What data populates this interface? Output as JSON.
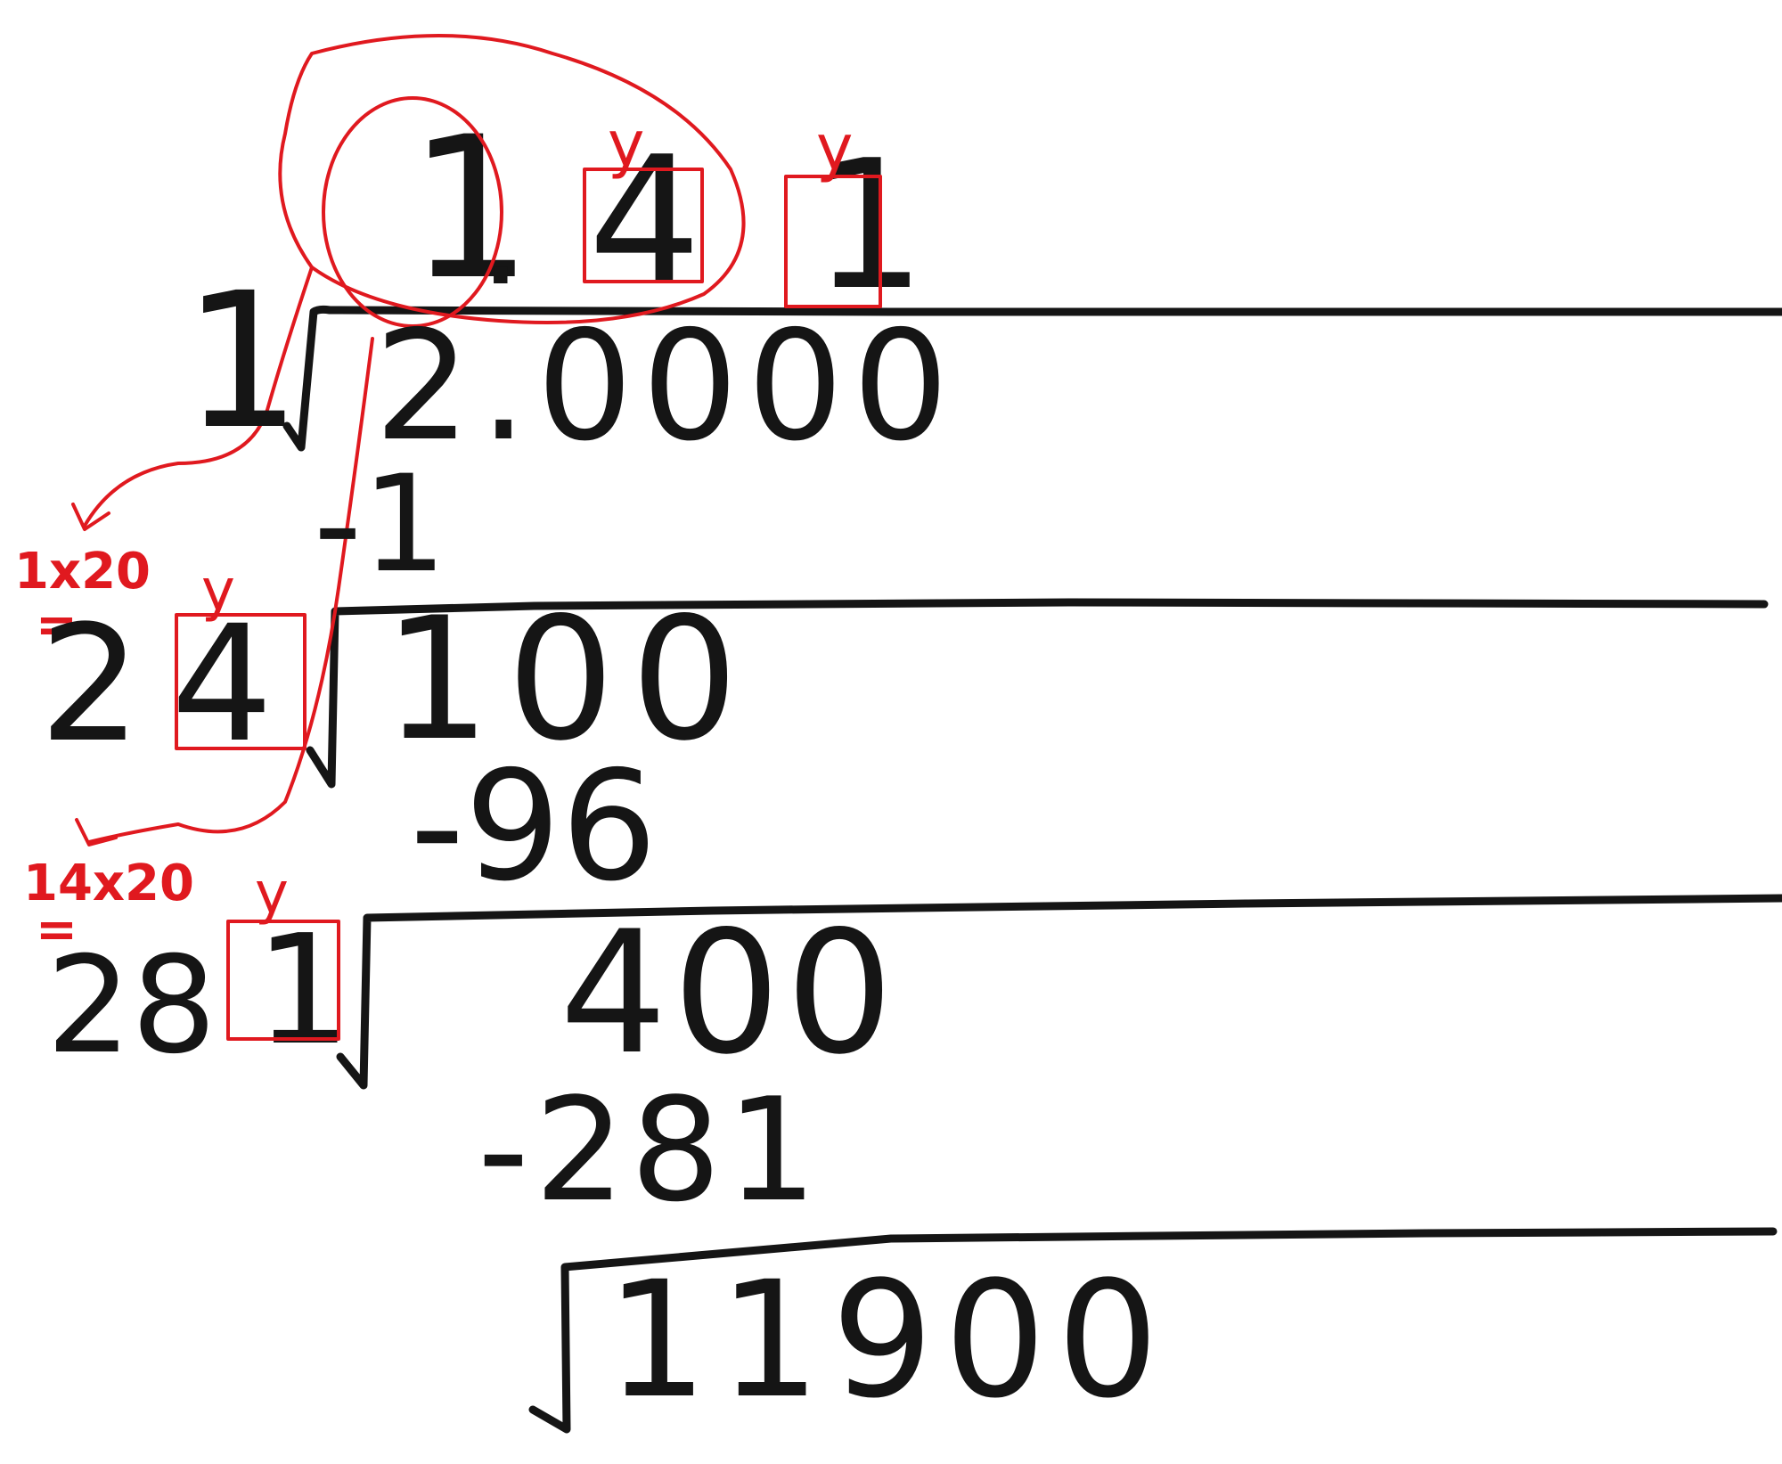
{
  "result": {
    "integer_digit": "1",
    "decimal_point": ".",
    "tenths_digit": "4",
    "hundredths_digit": "1",
    "marker_tenths": "y",
    "marker_hundredths": "y"
  },
  "step1": {
    "divisor": "1",
    "radicand": "2.0000",
    "subtract": "-1"
  },
  "step2": {
    "note_top": "1x20",
    "note_eq": "=",
    "divisor_base": "2",
    "divisor_y": "4",
    "marker": "y",
    "remainder": "100",
    "subtract": "-96"
  },
  "step3": {
    "note_top": "14x20",
    "note_eq": "=",
    "divisor_base": "28",
    "divisor_y": "1",
    "marker": "y",
    "remainder": "400",
    "subtract": "-281"
  },
  "step4": {
    "remainder": "11900"
  },
  "colors": {
    "ink": "#151515",
    "red": "#e0191f",
    "paper": "#ffffff"
  }
}
